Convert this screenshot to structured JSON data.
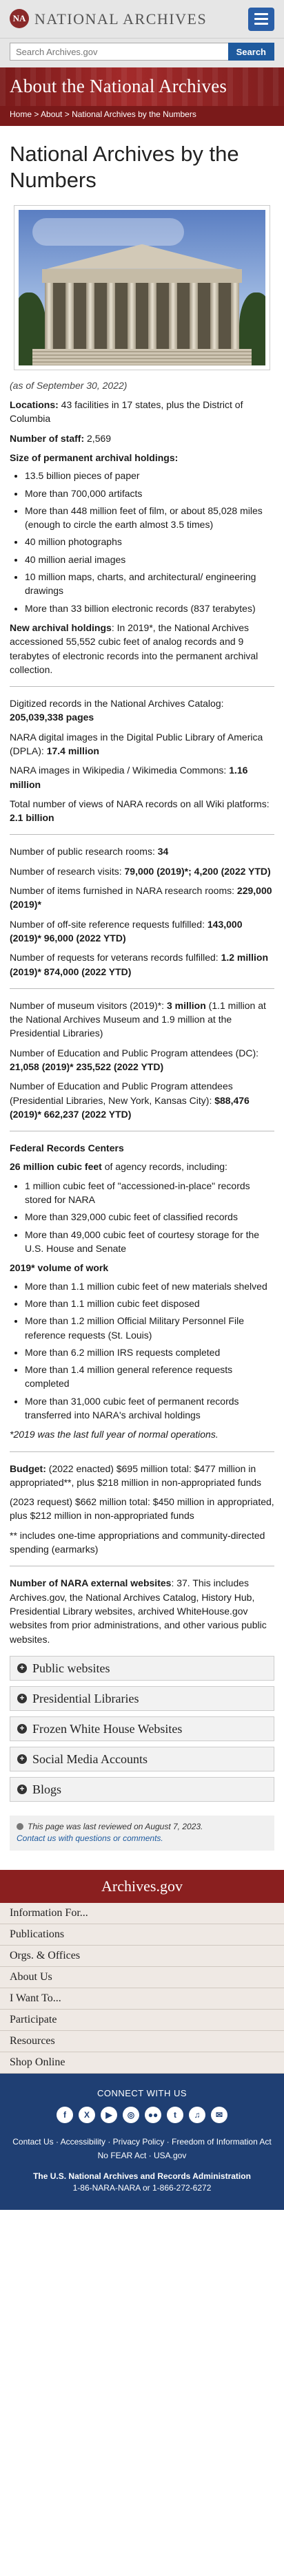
{
  "header": {
    "logo_text": "NATIONAL ARCHIVES",
    "logo_mark": "NA"
  },
  "search": {
    "placeholder": "Search Archives.gov",
    "button": "Search"
  },
  "banner": {
    "title": "About the National Archives"
  },
  "breadcrumb": {
    "home": "Home",
    "sep": " > ",
    "about": "About",
    "current": "National Archives by the Numbers"
  },
  "page": {
    "title": "National Archives by the Numbers",
    "caption": "(as of September 30, 2022)",
    "locations_label": "Locations:",
    "locations_value": " 43 facilities in 17 states, plus the District of Columbia",
    "staff_label": "Number of staff:",
    "staff_value": " 2,569",
    "holdings_heading": "Size of permanent archival holdings:",
    "holdings": [
      "13.5 billion pieces of paper",
      "More than 700,000 artifacts",
      "More than 448 million feet of film, or about 85,028 miles (enough to circle the earth almost 3.5 times)",
      "40 million photographs",
      "40 million aerial images",
      "10 million maps, charts, and architectural/ engineering drawings",
      "More than 33 billion electronic records (837 terabytes)"
    ],
    "new_holdings_label": "New archival holdings",
    "new_holdings_text": ": In 2019*, the National Archives accessioned 55,552 cubic feet of analog records and 9 terabytes of electronic records into the permanent archival collection.",
    "digitized_label": "Digitized records in the National Archives Catalog:",
    "digitized_value": "205,039,338 pages",
    "dpla_label": "NARA digital images in the Digital Public Library of America (DPLA): ",
    "dpla_value": "17.4 million",
    "wiki_label": "NARA images in Wikipedia / Wikimedia Commons: ",
    "wiki_value": "1.16 million",
    "wiki_views_label": "Total number of views of NARA records on all Wiki platforms: ",
    "wiki_views_value": "2.1 billion",
    "rooms_label": "Number of public research rooms: ",
    "rooms_value": "34",
    "visits_label": "Number of research visits: ",
    "visits_value": "79,000 (2019)*; 4,200 (2022 YTD)",
    "items_label": "Number of items furnished in NARA research rooms: ",
    "items_value": "229,000 (2019)*",
    "offsite_label": "Number of off-site reference requests fulfilled: ",
    "offsite_value": "143,000 (2019)* 96,000 (2022 YTD)",
    "veterans_label": "Number of requests for veterans records fulfilled: ",
    "veterans_value": "1.2 million (2019)* 874,000 (2022 YTD)",
    "museum_label": "Number of museum visitors (2019)*: ",
    "museum_value": "3 million",
    "museum_detail": " (1.1 million at the National Archives Museum and 1.9 million at the Presidential Libraries)",
    "edu_dc_label": "Number of Education and Public Program attendees (DC): ",
    "edu_dc_value": "21,058 (2019)* 235,522 (2022 YTD)",
    "edu_pl_label": "Number of Education and Public Program attendees (Presidential Libraries, New York, Kansas City): ",
    "edu_pl_value": "$88,476 (2019)* 662,237 (2022 YTD)",
    "frc_heading": "Federal Records Centers",
    "frc_cubic_value": "26 million cubic feet",
    "frc_cubic_label": " of agency records, including:",
    "frc_items": [
      "1 million cubic feet of \"accessioned-in-place\" records stored for NARA",
      "More than 329,000 cubic feet of classified records",
      "More than 49,000 cubic feet of courtesy storage for the U.S. House and Senate"
    ],
    "work_heading": "2019* volume of work",
    "work_items": [
      "More than 1.1 million cubic feet of new materials shelved",
      "More than 1.1 million cubic feet disposed",
      "More than 1.2 million Official Military Personnel File reference requests (St. Louis)",
      "More than 6.2 million IRS requests completed",
      "More than 1.4 million general reference requests completed",
      "More than 31,000 cubic feet of permanent records transferred into NARA's archival holdings"
    ],
    "work_footnote": "*2019 was the last full year of normal operations.",
    "budget_label": "Budget:",
    "budget_text": " (2022 enacted) $695 million total: $477 million in appropriated**, plus $218 million in non-appropriated funds",
    "budget_2023": "(2023 request) $662 million total: $450 million in appropriated, plus $212 million in non-appropriated funds",
    "budget_footnote": "** includes one-time appropriations and community-directed spending (earmarks)",
    "websites_label": "Number of NARA external websites",
    "websites_text": ": 37. This includes Archives.gov, the National Archives Catalog, History Hub, Presidential Library websites, archived WhiteHouse.gov websites from prior administrations, and other various public websites.",
    "accordion": [
      "Public websites",
      "Presidential Libraries",
      "Frozen White House Websites",
      "Social Media Accounts",
      "Blogs"
    ],
    "accordion_icon": "+"
  },
  "review": {
    "text": "This page was last reviewed on August 7, 2023.",
    "contact": "Contact us with questions or comments."
  },
  "footer": {
    "brand": "Archives.gov",
    "nav": [
      "Information For...",
      "Publications",
      "Orgs. & Offices",
      "About Us",
      "I Want To...",
      "Participate",
      "Resources",
      "Shop Online"
    ],
    "connect": "CONNECT WITH US",
    "social_icons": [
      "facebook-icon",
      "x-icon",
      "youtube-icon",
      "instagram-icon",
      "flickr-icon",
      "tumblr-icon",
      "podcast-icon",
      "email-icon"
    ],
    "social_glyphs": [
      "f",
      "X",
      "▶",
      "◎",
      "●●",
      "t",
      "♫",
      "✉"
    ],
    "links": [
      "Contact Us",
      "Accessibility",
      "Privacy Policy",
      "Freedom of Information Act",
      "No FEAR Act",
      "USA.gov"
    ],
    "link_sep": " · ",
    "org": "The U.S. National Archives and Records Administration",
    "phone": "1-86-NARA-NARA or 1-866-272-6272"
  }
}
